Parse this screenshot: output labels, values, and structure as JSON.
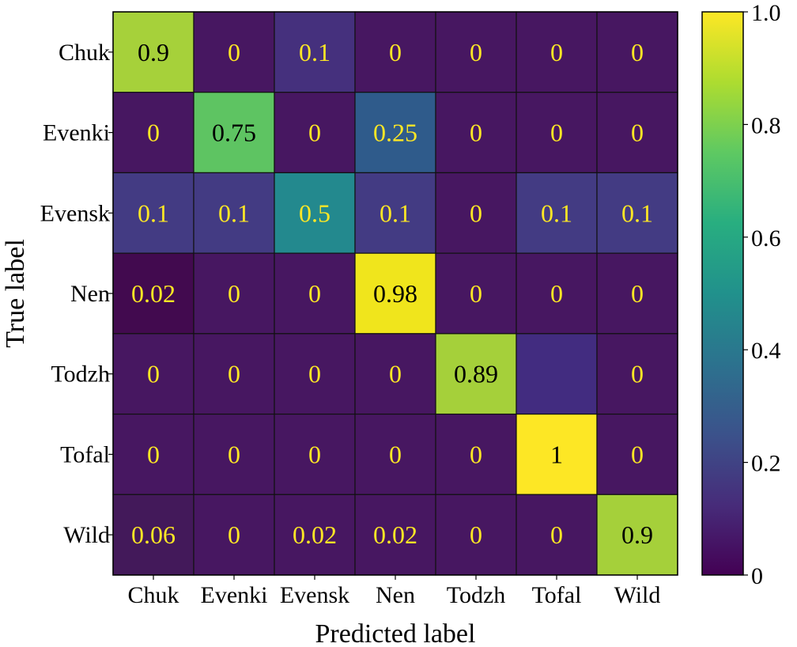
{
  "chart_data": {
    "type": "heatmap",
    "title": "",
    "xlabel": "Predicted label",
    "ylabel": "True label",
    "x_categories": [
      "Chuk",
      "Evenki",
      "Evensk",
      "Nen",
      "Todzh",
      "Tofal",
      "Wild"
    ],
    "y_categories": [
      "Chuk",
      "Evenki",
      "Evensk",
      "Nen",
      "Todzh",
      "Tofal",
      "Wild"
    ],
    "values": [
      [
        0.9,
        0,
        0.1,
        0,
        0,
        0,
        0
      ],
      [
        0,
        0.75,
        0,
        0.25,
        0,
        0,
        0
      ],
      [
        0.1,
        0.1,
        0.5,
        0.1,
        0,
        0.1,
        0.1
      ],
      [
        0.02,
        0,
        0,
        0.98,
        0,
        0,
        0
      ],
      [
        0,
        0,
        0,
        0,
        0.89,
        0.11,
        0
      ],
      [
        0,
        0,
        0,
        0,
        0,
        1,
        0
      ],
      [
        0.06,
        0,
        0.02,
        0.02,
        0,
        0,
        0.9
      ]
    ],
    "cell_labels": [
      [
        "0.9",
        "0",
        "0.1",
        "0",
        "0",
        "0",
        "0"
      ],
      [
        "0",
        "0.75",
        "0",
        "0.25",
        "0",
        "0",
        "0"
      ],
      [
        "0.1",
        "0.1",
        "0.5",
        "0.1",
        "0",
        "0.1",
        "0.1"
      ],
      [
        "0.02",
        "0",
        "0",
        "0.98",
        "0",
        "0",
        "0"
      ],
      [
        "0",
        "0",
        "0",
        "0",
        "0.89",
        "",
        "0"
      ],
      [
        "0",
        "0",
        "0",
        "0",
        "0",
        "1",
        "0"
      ],
      [
        "0.06",
        "0",
        "0.02",
        "0.02",
        "0",
        "0",
        "0.9"
      ]
    ],
    "cell_colors": [
      [
        "#a6d13a",
        "#471761",
        "#45307d",
        "#471761",
        "#471761",
        "#471761",
        "#471761"
      ],
      [
        "#471761",
        "#5ec462",
        "#471761",
        "#2f5b8b",
        "#471761",
        "#471761",
        "#471761"
      ],
      [
        "#433b83",
        "#433b83",
        "#23898e",
        "#433b83",
        "#471761",
        "#433b83",
        "#433b83"
      ],
      [
        "#420a4f",
        "#471761",
        "#471761",
        "#f0e51c",
        "#471761",
        "#471761",
        "#471761"
      ],
      [
        "#471761",
        "#471761",
        "#471761",
        "#471761",
        "#a5d03a",
        "#422c80",
        "#471761"
      ],
      [
        "#471761",
        "#471761",
        "#471761",
        "#471761",
        "#471761",
        "#fde725",
        "#471761"
      ],
      [
        "#43195a",
        "#471761",
        "#471761",
        "#471761",
        "#471761",
        "#471761",
        "#a5d03a"
      ]
    ],
    "colorbar": {
      "range": [
        0,
        1.0
      ],
      "ticks": [
        0,
        0.2,
        0.4,
        0.6,
        0.8,
        1.0
      ],
      "tick_labels": [
        "0",
        "0.2",
        "0.4",
        "0.6",
        "0.8",
        "1.0"
      ],
      "colormap": "viridis"
    },
    "text_color_dark": "#fde725",
    "text_color_light": "#000000"
  }
}
